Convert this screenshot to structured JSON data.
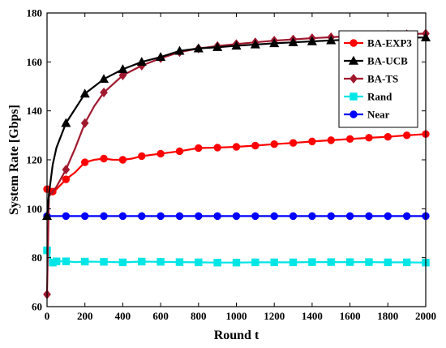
{
  "chart_data": {
    "type": "line",
    "xlabel": "Round t",
    "ylabel": "System Rate [Gbps]",
    "xlim": [
      0,
      2000
    ],
    "ylim": [
      60,
      180
    ],
    "xticks": [
      0,
      200,
      400,
      600,
      800,
      1000,
      1200,
      1400,
      1600,
      1800,
      2000
    ],
    "yticks": [
      60,
      80,
      100,
      120,
      140,
      160,
      180
    ],
    "x_tick_labels": [
      "0",
      "200",
      "400",
      "600",
      "800",
      "1000",
      "1200",
      "1400",
      "1600",
      "1800",
      "2000"
    ],
    "y_tick_labels": [
      "60",
      "80",
      "100",
      "120",
      "140",
      "160",
      "180"
    ],
    "grid": false,
    "legend_position": "top-right",
    "series": [
      {
        "name": "BA-EXP3",
        "color": "#ff0000",
        "marker": "circle",
        "x": [
          0,
          10,
          30,
          50,
          100,
          150,
          200,
          250,
          300,
          350,
          400,
          450,
          500,
          600,
          700,
          800,
          900,
          1000,
          1100,
          1200,
          1300,
          1400,
          1500,
          1600,
          1700,
          1800,
          1900,
          2000
        ],
        "values": [
          108,
          109,
          107,
          108,
          112,
          115,
          119,
          120,
          120.5,
          120,
          120,
          120.5,
          121.5,
          122.5,
          123.5,
          124.8,
          125,
          125.3,
          125.8,
          126.4,
          126.9,
          127.5,
          128,
          128.5,
          129,
          129.4,
          130,
          130.5
        ],
        "marker_indices": [
          0,
          2,
          4,
          6,
          8,
          10,
          12,
          13,
          14,
          15,
          16,
          17,
          18,
          19,
          20,
          21,
          22,
          23,
          24,
          25,
          26,
          27
        ]
      },
      {
        "name": "BA-UCB",
        "color": "#000000",
        "marker": "triangle",
        "x": [
          0,
          10,
          30,
          50,
          100,
          150,
          200,
          250,
          300,
          350,
          400,
          450,
          500,
          600,
          700,
          800,
          900,
          1000,
          1100,
          1200,
          1300,
          1400,
          1500,
          1600,
          1700,
          1800,
          1900,
          2000
        ],
        "values": [
          97,
          106,
          118,
          125,
          135,
          141,
          147,
          150,
          153,
          155,
          157,
          158.5,
          160,
          162,
          164.5,
          165.5,
          166,
          166.6,
          167.1,
          167.6,
          168,
          168.4,
          168.8,
          169.1,
          169.4,
          169.7,
          169.9,
          170
        ],
        "marker_indices": [
          0,
          4,
          6,
          8,
          10,
          12,
          13,
          14,
          15,
          16,
          17,
          18,
          19,
          20,
          21,
          22,
          23,
          24,
          25,
          26,
          27
        ]
      },
      {
        "name": "BA-TS",
        "color": "#a0182e",
        "marker": "diamond",
        "x": [
          0,
          10,
          30,
          50,
          100,
          150,
          200,
          250,
          300,
          350,
          400,
          450,
          500,
          600,
          700,
          800,
          900,
          1000,
          1100,
          1200,
          1300,
          1400,
          1500,
          1600,
          1700,
          1800,
          1900,
          2000
        ],
        "values": [
          65,
          105,
          107,
          109,
          116,
          125,
          135,
          142,
          147.5,
          151,
          154.5,
          156.5,
          158.5,
          161.5,
          164,
          165.5,
          166.5,
          167.3,
          168,
          168.7,
          169.2,
          169.7,
          170.1,
          170.5,
          170.8,
          171.1,
          171.3,
          171.6
        ],
        "marker_indices": [
          0,
          4,
          6,
          8,
          10,
          12,
          13,
          14,
          15,
          16,
          17,
          18,
          19,
          20,
          21,
          22,
          23,
          24,
          25,
          26,
          27
        ]
      },
      {
        "name": "Rand",
        "color": "#00e5e5",
        "marker": "square",
        "x": [
          0,
          10,
          20,
          30,
          50,
          100,
          150,
          200,
          300,
          400,
          500,
          600,
          700,
          800,
          900,
          1000,
          1100,
          1200,
          1300,
          1400,
          1500,
          1600,
          1700,
          1800,
          1900,
          2000
        ],
        "values": [
          83,
          82,
          79,
          78,
          78.5,
          78.5,
          78.2,
          78.4,
          78.3,
          78.1,
          78.4,
          78.3,
          78.2,
          78.1,
          78,
          78,
          78.1,
          78.1,
          78.1,
          78.2,
          78.2,
          78.2,
          78.2,
          78.1,
          78.1,
          78
        ],
        "marker_indices": [
          0,
          3,
          4,
          5,
          7,
          8,
          9,
          10,
          11,
          12,
          13,
          14,
          15,
          16,
          17,
          18,
          19,
          20,
          21,
          22,
          23,
          24,
          25
        ]
      },
      {
        "name": "Near",
        "color": "#0000ff",
        "marker": "circle",
        "x": [
          0,
          100,
          200,
          300,
          400,
          500,
          600,
          700,
          800,
          900,
          1000,
          1100,
          1200,
          1300,
          1400,
          1500,
          1600,
          1700,
          1800,
          1900,
          2000
        ],
        "values": [
          97,
          97,
          97,
          97,
          97,
          97,
          97,
          97,
          97,
          97,
          97,
          97,
          97,
          97,
          97,
          97,
          97,
          97,
          97,
          97,
          97
        ],
        "marker_indices": [
          0,
          1,
          2,
          3,
          4,
          5,
          6,
          7,
          8,
          9,
          10,
          11,
          12,
          13,
          14,
          15,
          16,
          17,
          18,
          19,
          20
        ]
      }
    ]
  }
}
